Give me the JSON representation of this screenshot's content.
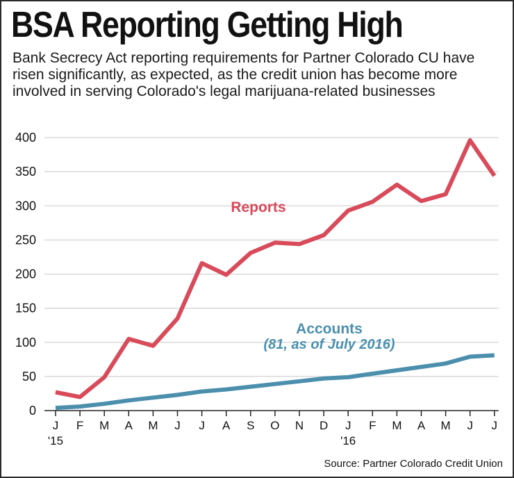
{
  "title": "BSA Reporting Getting High",
  "subtitle": "Bank Secrecy Act reporting requirements for Partner Colorado CU have risen significantly, as expected, as the credit union has become more involved in serving Colorado's legal marijuana-related businesses",
  "source": "Source: Partner Colorado Credit Union",
  "colors": {
    "reports": "#d94a5a",
    "accounts": "#4b8fad",
    "axis": "#222222",
    "grid": "#c8c8c8"
  },
  "chart_data": {
    "type": "line",
    "title": "BSA Reporting Getting High",
    "xlabel": "",
    "ylabel": "",
    "ylim": [
      0,
      400
    ],
    "yticks": [
      0,
      50,
      100,
      150,
      200,
      250,
      300,
      350,
      400
    ],
    "grid": true,
    "categories": [
      "J",
      "F",
      "M",
      "A",
      "M",
      "J",
      "J",
      "A",
      "S",
      "O",
      "N",
      "D",
      "J",
      "F",
      "M",
      "A",
      "M",
      "J",
      "J"
    ],
    "year_labels": [
      {
        "index": 0,
        "label": "'15"
      },
      {
        "index": 12,
        "label": "'16"
      }
    ],
    "series": [
      {
        "name": "Reports",
        "label": "Reports",
        "values": [
          27,
          20,
          49,
          105,
          95,
          135,
          216,
          199,
          231,
          246,
          244,
          257,
          293,
          306,
          331,
          307,
          317,
          396,
          344
        ]
      },
      {
        "name": "Accounts",
        "label": "Accounts",
        "note": "(81, as of July 2016)",
        "values": [
          4,
          6,
          10,
          15,
          19,
          23,
          28,
          31,
          35,
          39,
          43,
          47,
          49,
          54,
          59,
          64,
          69,
          79,
          81
        ]
      }
    ]
  }
}
